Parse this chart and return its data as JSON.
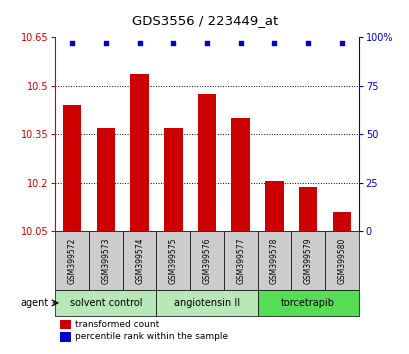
{
  "title": "GDS3556 / 223449_at",
  "samples": [
    "GSM399572",
    "GSM399573",
    "GSM399574",
    "GSM399575",
    "GSM399576",
    "GSM399577",
    "GSM399578",
    "GSM399579",
    "GSM399580"
  ],
  "bar_values": [
    10.44,
    10.37,
    10.535,
    10.37,
    10.475,
    10.4,
    10.205,
    10.185,
    10.11
  ],
  "percentile_values": [
    97,
    97,
    97,
    97,
    97,
    97,
    97,
    97,
    97
  ],
  "ylim_left": [
    10.05,
    10.65
  ],
  "ylim_right": [
    0,
    100
  ],
  "yticks_left": [
    10.05,
    10.2,
    10.35,
    10.5,
    10.65
  ],
  "yticks_right": [
    0,
    25,
    50,
    75,
    100
  ],
  "bar_color": "#cc0000",
  "dot_color": "#0000cc",
  "groups": [
    {
      "label": "solvent control",
      "indices": [
        0,
        1,
        2
      ],
      "color": "#b8e8b8"
    },
    {
      "label": "angiotensin II",
      "indices": [
        3,
        4,
        5
      ],
      "color": "#b8e8b8"
    },
    {
      "label": "torcetrapib",
      "indices": [
        6,
        7,
        8
      ],
      "color": "#55dd55"
    }
  ],
  "agent_label": "agent",
  "legend_bar_label": "transformed count",
  "legend_dot_label": "percentile rank within the sample",
  "left_axis_color": "#cc0000",
  "right_axis_color": "#0000cc",
  "grid_color": "#000000",
  "bar_width": 0.55,
  "background_color": "#ffffff",
  "tick_label_bg": "#cccccc"
}
